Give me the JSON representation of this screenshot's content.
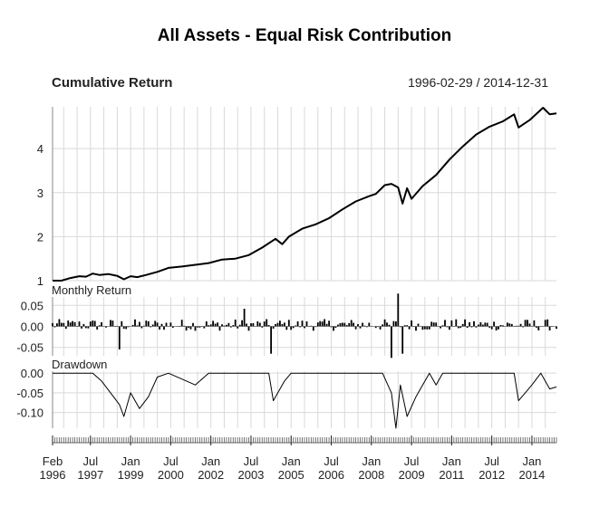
{
  "chart_data": {
    "type": "line",
    "title": "All Assets - Equal Risk Contribution",
    "date_range": "1996-02-29 / 2014-12-31",
    "grid": true,
    "panels": [
      {
        "name": "cumulative-return",
        "label": "Cumulative Return",
        "type": "line",
        "ylim": [
          1.0,
          4.95
        ],
        "yticks": [
          1,
          2,
          3,
          4
        ],
        "ytick_labels": [
          "1",
          "2",
          "3",
          "4"
        ],
        "points": [
          [
            "1996-02",
            1.0
          ],
          [
            "1996-06",
            1.0
          ],
          [
            "1996-10",
            1.06
          ],
          [
            "1997-02",
            1.1
          ],
          [
            "1997-05",
            1.09
          ],
          [
            "1997-08",
            1.16
          ],
          [
            "1997-11",
            1.13
          ],
          [
            "1998-03",
            1.15
          ],
          [
            "1998-07",
            1.11
          ],
          [
            "1998-10",
            1.03
          ],
          [
            "1999-01",
            1.1
          ],
          [
            "1999-04",
            1.08
          ],
          [
            "1999-08",
            1.13
          ],
          [
            "2000-01",
            1.2
          ],
          [
            "2000-06",
            1.29
          ],
          [
            "2000-12",
            1.32
          ],
          [
            "2001-06",
            1.36
          ],
          [
            "2001-12",
            1.4
          ],
          [
            "2002-06",
            1.48
          ],
          [
            "2002-12",
            1.5
          ],
          [
            "2003-06",
            1.58
          ],
          [
            "2003-12",
            1.75
          ],
          [
            "2004-06",
            1.95
          ],
          [
            "2004-09",
            1.83
          ],
          [
            "2004-12",
            2.0
          ],
          [
            "2005-06",
            2.18
          ],
          [
            "2005-12",
            2.28
          ],
          [
            "2006-06",
            2.42
          ],
          [
            "2006-12",
            2.62
          ],
          [
            "2007-06",
            2.8
          ],
          [
            "2007-12",
            2.92
          ],
          [
            "2008-03",
            2.97
          ],
          [
            "2008-07",
            3.17
          ],
          [
            "2008-10",
            3.2
          ],
          [
            "2009-01",
            3.12
          ],
          [
            "2009-03",
            2.75
          ],
          [
            "2009-05",
            3.1
          ],
          [
            "2009-07",
            2.86
          ],
          [
            "2009-12",
            3.15
          ],
          [
            "2010-06",
            3.4
          ],
          [
            "2010-12",
            3.75
          ],
          [
            "2011-06",
            4.05
          ],
          [
            "2011-12",
            4.32
          ],
          [
            "2012-06",
            4.5
          ],
          [
            "2012-12",
            4.62
          ],
          [
            "2013-05",
            4.78
          ],
          [
            "2013-07",
            4.48
          ],
          [
            "2013-12",
            4.65
          ],
          [
            "2014-06",
            4.93
          ],
          [
            "2014-09",
            4.78
          ],
          [
            "2014-12",
            4.8
          ]
        ]
      },
      {
        "name": "monthly-return",
        "label": "Monthly Return",
        "type": "bar",
        "ylim": [
          -0.07,
          0.07
        ],
        "yticks": [
          0.05,
          0.0,
          -0.05
        ],
        "ytick_labels": [
          "0.05",
          "0.00",
          "-0.05"
        ],
        "large_bars": [
          [
            "1998-08",
            -0.055
          ],
          [
            "2003-04",
            0.042
          ],
          [
            "2004-04",
            -0.065
          ],
          [
            "2008-10",
            -0.075
          ],
          [
            "2009-01",
            0.078
          ],
          [
            "2009-03",
            -0.065
          ]
        ]
      },
      {
        "name": "drawdown",
        "label": "Drawdown",
        "type": "line",
        "ylim": [
          -0.14,
          0.005
        ],
        "yticks": [
          0.0,
          -0.05,
          -0.1
        ],
        "ytick_labels": [
          "0.00",
          "-0.05",
          "-0.10"
        ],
        "points": [
          [
            "1996-02",
            0.0
          ],
          [
            "1997-08",
            0.0
          ],
          [
            "1997-12",
            -0.02
          ],
          [
            "1998-04",
            -0.05
          ],
          [
            "1998-08",
            -0.08
          ],
          [
            "1998-10",
            -0.11
          ],
          [
            "1999-01",
            -0.05
          ],
          [
            "1999-05",
            -0.09
          ],
          [
            "1999-09",
            -0.06
          ],
          [
            "2000-01",
            -0.01
          ],
          [
            "2000-06",
            0.0
          ],
          [
            "2001-06",
            -0.03
          ],
          [
            "2001-12",
            0.0
          ],
          [
            "2004-03",
            0.0
          ],
          [
            "2004-05",
            -0.07
          ],
          [
            "2004-10",
            -0.02
          ],
          [
            "2005-01",
            0.0
          ],
          [
            "2008-06",
            0.0
          ],
          [
            "2008-10",
            -0.05
          ],
          [
            "2008-12",
            -0.14
          ],
          [
            "2009-02",
            -0.03
          ],
          [
            "2009-05",
            -0.11
          ],
          [
            "2009-09",
            -0.06
          ],
          [
            "2010-03",
            0.0
          ],
          [
            "2010-06",
            -0.03
          ],
          [
            "2010-09",
            0.0
          ],
          [
            "2013-05",
            0.0
          ],
          [
            "2013-07",
            -0.07
          ],
          [
            "2013-10",
            -0.05
          ],
          [
            "2014-01",
            -0.03
          ],
          [
            "2014-05",
            0.0
          ],
          [
            "2014-09",
            -0.04
          ],
          [
            "2014-12",
            -0.035
          ]
        ]
      }
    ],
    "x_ticks": [
      {
        "date": "1996-02",
        "month": "Feb",
        "year": "1996"
      },
      {
        "date": "1997-07",
        "month": "Jul",
        "year": "1997"
      },
      {
        "date": "1999-01",
        "month": "Jan",
        "year": "1999"
      },
      {
        "date": "2000-07",
        "month": "Jul",
        "year": "2000"
      },
      {
        "date": "2002-01",
        "month": "Jan",
        "year": "2002"
      },
      {
        "date": "2003-07",
        "month": "Jul",
        "year": "2003"
      },
      {
        "date": "2005-01",
        "month": "Jan",
        "year": "2005"
      },
      {
        "date": "2006-07",
        "month": "Jul",
        "year": "2006"
      },
      {
        "date": "2008-01",
        "month": "Jan",
        "year": "2008"
      },
      {
        "date": "2009-07",
        "month": "Jul",
        "year": "2009"
      },
      {
        "date": "2011-01",
        "month": "Jan",
        "year": "2011"
      },
      {
        "date": "2012-07",
        "month": "Jul",
        "year": "2012"
      },
      {
        "date": "2014-01",
        "month": "Jan",
        "year": "2014"
      }
    ],
    "colors": {
      "line": "#000000",
      "grid": "#d9d9d9",
      "axis": "#888888",
      "text": "#222222"
    }
  }
}
